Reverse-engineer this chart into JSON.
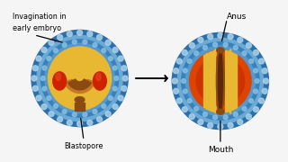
{
  "bg_color": "#ffffff",
  "left_label_line1": "Invagination in",
  "left_label_line2": "early embryo",
  "left_bottom_label": "Blastopore",
  "right_top_label": "Anus",
  "right_bottom_label": "Mouth",
  "colors": {
    "outer_blue_dark": "#3a7fc1",
    "outer_blue_light": "#a8cce8",
    "mid_blue": "#6aaad4",
    "inner_blue": "#4d8fc4",
    "yellow": "#e8b832",
    "yellow_dark": "#c8920a",
    "red_oval": "#cc2200",
    "red_orange": "#dd4400",
    "dark_brown": "#7a4010",
    "orange_red": "#cc3300",
    "bg": "#f0f0f0"
  }
}
